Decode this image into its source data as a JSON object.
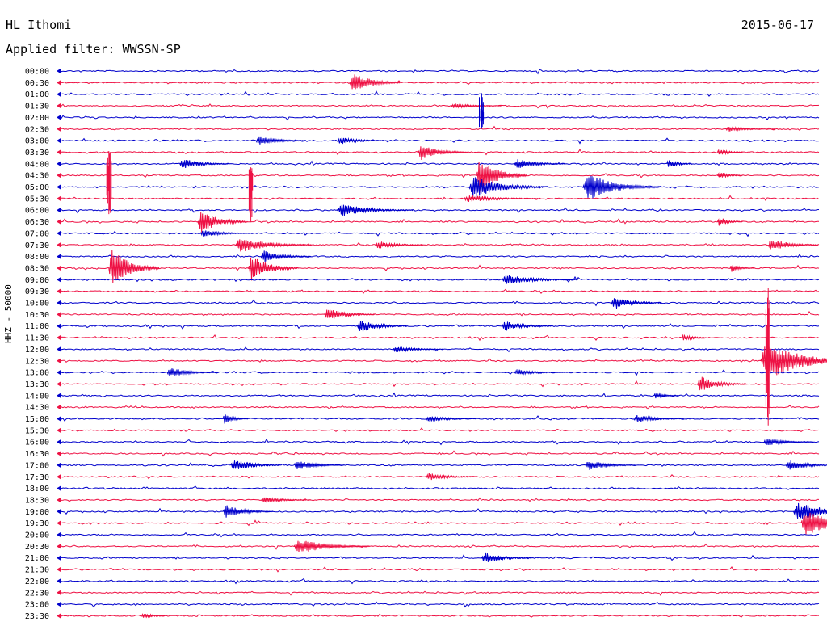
{
  "header": {
    "station": "HL Ithomi",
    "date": "2015-06-17",
    "filter": "Applied filter: WWSSN-SP"
  },
  "chart_data": {
    "type": "line",
    "title": "HL Ithomi",
    "subtitle": "Applied filter: WWSSN-SP",
    "date": "2015-06-17",
    "ylabel": "HHZ - 50000",
    "tick_labels": [
      "00:00",
      "00:30",
      "01:00",
      "01:30",
      "02:00",
      "02:30",
      "03:00",
      "03:30",
      "04:00",
      "04:30",
      "05:00",
      "05:30",
      "06:00",
      "06:30",
      "07:00",
      "07:30",
      "08:00",
      "08:30",
      "09:00",
      "09:30",
      "10:00",
      "10:30",
      "11:00",
      "11:30",
      "12:00",
      "12:30",
      "13:00",
      "13:30",
      "14:00",
      "14:30",
      "15:00",
      "15:30",
      "16:00",
      "16:30",
      "17:00",
      "17:30",
      "18:00",
      "18:30",
      "19:00",
      "19:30",
      "20:00",
      "20:30",
      "21:00",
      "21:30",
      "22:00",
      "22:30",
      "23:00",
      "23:30"
    ],
    "trace_minutes": 30,
    "colors": [
      "#0000cc",
      "#ee1144"
    ],
    "events": [
      {
        "row": 1,
        "minute": 11.5,
        "amp": 16,
        "dur": 2
      },
      {
        "row": 3,
        "minute": 15.5,
        "amp": 4,
        "dur": 2
      },
      {
        "row": 5,
        "minute": 26.3,
        "amp": 4,
        "dur": 2
      },
      {
        "row": 6,
        "minute": 7.8,
        "amp": 8,
        "dur": 2
      },
      {
        "row": 6,
        "minute": 11,
        "amp": 6,
        "dur": 2
      },
      {
        "row": 7,
        "minute": 14.2,
        "amp": 12,
        "dur": 2
      },
      {
        "row": 7,
        "minute": 26,
        "amp": 6,
        "dur": 1
      },
      {
        "row": 8,
        "minute": 4.8,
        "amp": 8,
        "dur": 2
      },
      {
        "row": 8,
        "minute": 18,
        "amp": 8,
        "dur": 2
      },
      {
        "row": 8,
        "minute": 24,
        "amp": 8,
        "dur": 1
      },
      {
        "row": 9,
        "minute": 16.5,
        "amp": 30,
        "dur": 2
      },
      {
        "row": 9,
        "minute": 26,
        "amp": 6,
        "dur": 1
      },
      {
        "row": 10,
        "minute": 16.2,
        "amp": 18,
        "dur": 3
      },
      {
        "row": 10,
        "minute": 20.7,
        "amp": 22,
        "dur": 3
      },
      {
        "row": 11,
        "minute": 16,
        "amp": 6,
        "dur": 3
      },
      {
        "row": 12,
        "minute": 11,
        "amp": 10,
        "dur": 3
      },
      {
        "row": 13,
        "minute": 5.5,
        "amp": 18,
        "dur": 2
      },
      {
        "row": 13,
        "minute": 26,
        "amp": 8,
        "dur": 1
      },
      {
        "row": 14,
        "minute": 5.6,
        "amp": 6,
        "dur": 2
      },
      {
        "row": 15,
        "minute": 7,
        "amp": 12,
        "dur": 3
      },
      {
        "row": 15,
        "minute": 12.5,
        "amp": 6,
        "dur": 2
      },
      {
        "row": 15,
        "minute": 28,
        "amp": 10,
        "dur": 2
      },
      {
        "row": 16,
        "minute": 8,
        "amp": 10,
        "dur": 2
      },
      {
        "row": 17,
        "minute": 2,
        "amp": 30,
        "dur": 2
      },
      {
        "row": 17,
        "minute": 7.5,
        "amp": 20,
        "dur": 2
      },
      {
        "row": 17,
        "minute": 26.5,
        "amp": 6,
        "dur": 1
      },
      {
        "row": 18,
        "minute": 17.5,
        "amp": 8,
        "dur": 3
      },
      {
        "row": 20,
        "minute": 21.8,
        "amp": 10,
        "dur": 2
      },
      {
        "row": 21,
        "minute": 10.5,
        "amp": 10,
        "dur": 2
      },
      {
        "row": 22,
        "minute": 11.8,
        "amp": 10,
        "dur": 2
      },
      {
        "row": 22,
        "minute": 17.5,
        "amp": 8,
        "dur": 2
      },
      {
        "row": 23,
        "minute": 24.6,
        "amp": 6,
        "dur": 1
      },
      {
        "row": 24,
        "minute": 13.2,
        "amp": 5,
        "dur": 2
      },
      {
        "row": 25,
        "minute": 27.7,
        "amp": 30,
        "dur": 4
      },
      {
        "row": 26,
        "minute": 4.3,
        "amp": 8,
        "dur": 2
      },
      {
        "row": 26,
        "minute": 18,
        "amp": 5,
        "dur": 2
      },
      {
        "row": 27,
        "minute": 25.2,
        "amp": 12,
        "dur": 2
      },
      {
        "row": 28,
        "minute": 23.5,
        "amp": 5,
        "dur": 1
      },
      {
        "row": 30,
        "minute": 6.5,
        "amp": 8,
        "dur": 1
      },
      {
        "row": 30,
        "minute": 14.5,
        "amp": 5,
        "dur": 2
      },
      {
        "row": 30,
        "minute": 22.7,
        "amp": 6,
        "dur": 2
      },
      {
        "row": 32,
        "minute": 27.8,
        "amp": 6,
        "dur": 2
      },
      {
        "row": 34,
        "minute": 6.8,
        "amp": 10,
        "dur": 2
      },
      {
        "row": 34,
        "minute": 9.3,
        "amp": 8,
        "dur": 2
      },
      {
        "row": 34,
        "minute": 20.8,
        "amp": 8,
        "dur": 2
      },
      {
        "row": 34,
        "minute": 28.7,
        "amp": 8,
        "dur": 2
      },
      {
        "row": 35,
        "minute": 14.5,
        "amp": 6,
        "dur": 2
      },
      {
        "row": 37,
        "minute": 8,
        "amp": 5,
        "dur": 2
      },
      {
        "row": 38,
        "minute": 6.5,
        "amp": 10,
        "dur": 2
      },
      {
        "row": 38,
        "minute": 29,
        "amp": 16,
        "dur": 3
      },
      {
        "row": 39,
        "minute": 29.3,
        "amp": 20,
        "dur": 3
      },
      {
        "row": 41,
        "minute": 9.3,
        "amp": 12,
        "dur": 3
      },
      {
        "row": 42,
        "minute": 16.7,
        "amp": 8,
        "dur": 2
      },
      {
        "row": 47,
        "minute": 3.3,
        "amp": 5,
        "dur": 1
      }
    ],
    "tall_spikes": [
      {
        "row": 4,
        "minute": 16.7,
        "up": 30,
        "down": 14
      },
      {
        "row": 9,
        "minute": 2,
        "up": 30,
        "down": 48
      },
      {
        "row": 9,
        "minute": 7.6,
        "up": 10,
        "down": 58
      },
      {
        "row": 25,
        "minute": 28,
        "up": 90,
        "down": 80
      }
    ]
  }
}
